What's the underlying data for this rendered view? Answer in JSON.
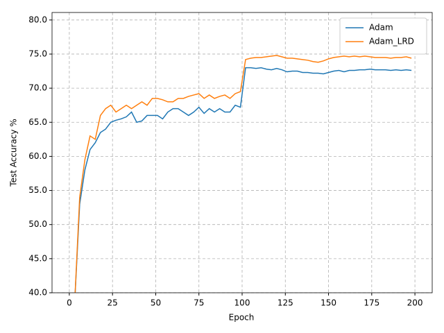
{
  "chart_data": {
    "type": "line",
    "x_label": "Epoch",
    "y_label": "Test Accuracy %",
    "x": [
      3,
      6,
      9,
      12,
      15,
      18,
      21,
      24,
      27,
      30,
      33,
      36,
      39,
      42,
      45,
      48,
      51,
      54,
      57,
      60,
      63,
      66,
      69,
      72,
      75,
      78,
      81,
      84,
      87,
      90,
      93,
      96,
      99,
      102,
      105,
      108,
      111,
      114,
      117,
      120,
      123,
      126,
      129,
      132,
      135,
      138,
      141,
      144,
      147,
      150,
      153,
      156,
      159,
      162,
      165,
      168,
      171,
      174,
      177,
      180,
      183,
      186,
      189,
      192,
      195,
      198
    ],
    "series": [
      {
        "name": "Adam",
        "color": "#1f77b4",
        "values": [
          38,
          53,
          58,
          61,
          62,
          63.5,
          64,
          65,
          65.3,
          65.5,
          65.8,
          66.5,
          65,
          65.2,
          66,
          66,
          66,
          65.5,
          66.5,
          67,
          67,
          66.5,
          66,
          66.5,
          67.2,
          66.3,
          67,
          66.5,
          67,
          66.5,
          66.5,
          67.5,
          67.2,
          73,
          73,
          72.9,
          73,
          72.8,
          72.7,
          72.9,
          72.7,
          72.4,
          72.5,
          72.5,
          72.3,
          72.3,
          72.2,
          72.2,
          72.1,
          72.3,
          72.5,
          72.6,
          72.4,
          72.6,
          72.6,
          72.7,
          72.7,
          72.8,
          72.7,
          72.7,
          72.7,
          72.6,
          72.7,
          72.6,
          72.7,
          72.6
        ]
      },
      {
        "name": "Adam_LRD",
        "color": "#ff7f0e",
        "values": [
          38,
          54,
          59.5,
          63,
          62.5,
          66,
          67,
          67.5,
          66.5,
          67,
          67.5,
          67,
          67.5,
          68,
          67.5,
          68.5,
          68.5,
          68.3,
          68,
          68,
          68.5,
          68.5,
          68.8,
          69,
          69.2,
          68.5,
          69,
          68.5,
          68.8,
          69,
          68.5,
          69.2,
          69.5,
          74.2,
          74.4,
          74.5,
          74.5,
          74.6,
          74.7,
          74.8,
          74.6,
          74.4,
          74.4,
          74.3,
          74.2,
          74.1,
          73.9,
          73.8,
          74,
          74.3,
          74.5,
          74.6,
          74.7,
          74.6,
          74.7,
          74.6,
          74.7,
          74.6,
          74.5,
          74.5,
          74.5,
          74.4,
          74.5,
          74.5,
          74.6,
          74.4
        ]
      }
    ],
    "xlim": [
      -10,
      210
    ],
    "xticks": [
      0,
      25,
      50,
      75,
      100,
      125,
      150,
      175,
      200
    ],
    "ylim": [
      40,
      81.1
    ],
    "yticks": [
      {
        "value": 40,
        "label": "40.0"
      },
      {
        "value": 45,
        "label": "45.0"
      },
      {
        "value": 50,
        "label": "50.0"
      },
      {
        "value": 55,
        "label": "55.0"
      },
      {
        "value": 60,
        "label": "60.0"
      },
      {
        "value": 65,
        "label": "65.0"
      },
      {
        "value": 70,
        "label": "70.0"
      },
      {
        "value": 75,
        "label": "75.0"
      },
      {
        "value": 80,
        "label": "80.0"
      }
    ],
    "grid": true,
    "legend": "upper right"
  }
}
